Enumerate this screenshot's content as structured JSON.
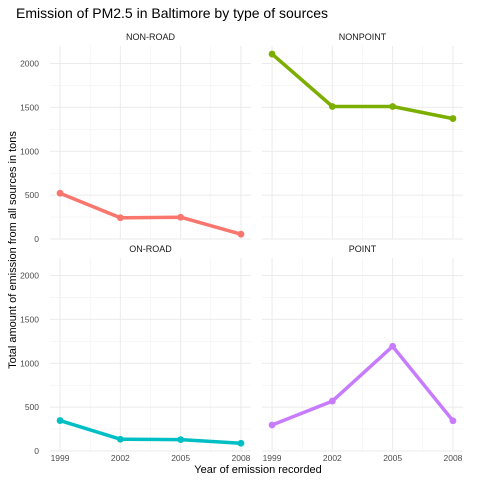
{
  "chart_data": {
    "type": "line",
    "title": "Emission of PM2.5 in Baltimore by type of sources",
    "xlabel": "Year of emission recorded",
    "ylabel": "Total amount of emission from all sources in tons",
    "x": [
      1999,
      2002,
      2005,
      2008
    ],
    "xlim": [
      1998.5,
      2008.5
    ],
    "ylim": [
      0,
      2200
    ],
    "yticks": [
      0,
      500,
      1000,
      1500,
      2000
    ],
    "grid": true,
    "legend": "none",
    "panels": [
      {
        "name": "NON-ROAD",
        "color": "#F8766D",
        "values": [
          522,
          242,
          248,
          55
        ]
      },
      {
        "name": "NONPOINT",
        "color": "#7CAE00",
        "values": [
          2108,
          1510,
          1510,
          1373
        ]
      },
      {
        "name": "ON-ROAD",
        "color": "#00BFC4",
        "values": [
          347,
          134,
          130,
          88
        ]
      },
      {
        "name": "POINT",
        "color": "#C77CFF",
        "values": [
          296,
          569,
          1194,
          345
        ]
      }
    ]
  }
}
